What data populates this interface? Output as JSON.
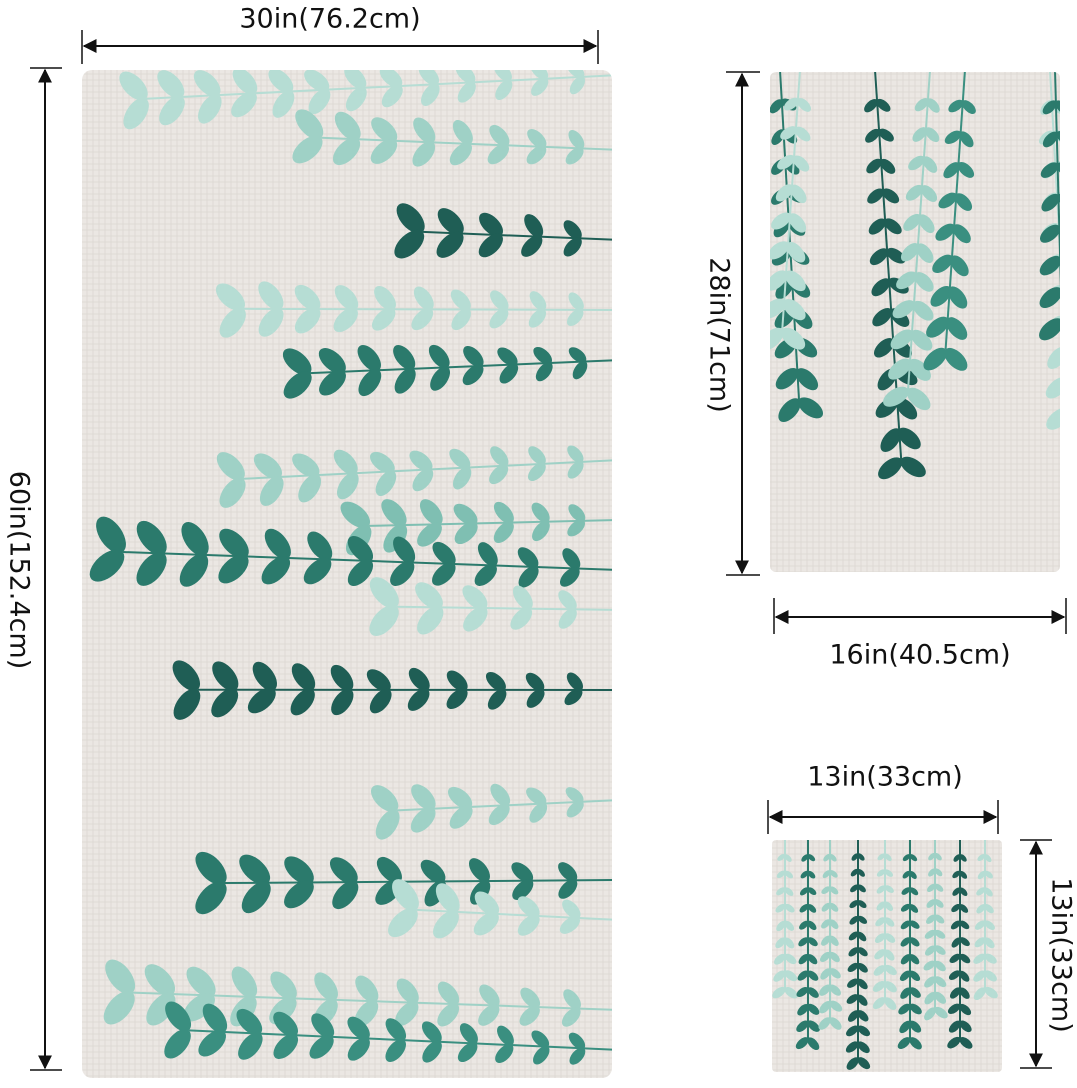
{
  "bath_towel": {
    "width": "30in(76.2cm)",
    "height": "60in(152.4cm)"
  },
  "hand_towel": {
    "height": "28in(71cm)",
    "width": "16in(40.5cm)"
  },
  "washcloth": {
    "width": "13in(33cm)",
    "height": "13in(33cm)"
  }
}
